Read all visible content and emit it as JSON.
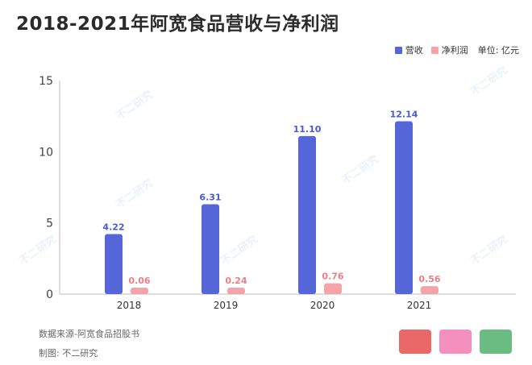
{
  "title": "2018-2021年阿宽食品营收与净利润",
  "legend": {
    "items": [
      {
        "name": "营收",
        "color": "#5566d9"
      },
      {
        "name": "净利润",
        "color": "#f4a3a8"
      }
    ],
    "unit": "单位: 亿元"
  },
  "chart_data": {
    "type": "bar",
    "categories": [
      "2018",
      "2019",
      "2020",
      "2021"
    ],
    "series": [
      {
        "name": "营收",
        "values": [
          4.22,
          6.31,
          11.1,
          12.14
        ],
        "labels": [
          "4.22",
          "6.31",
          "11.10",
          "12.14"
        ]
      },
      {
        "name": "净利润",
        "values": [
          0.06,
          0.24,
          0.76,
          0.56
        ],
        "labels": [
          "0.06",
          "0.24",
          "0.76",
          "0.56"
        ]
      }
    ],
    "yticks": [
      "0",
      "5",
      "10",
      "15"
    ],
    "ylim": [
      0,
      15
    ],
    "legend_position": "top-right",
    "grid": false
  },
  "footer": {
    "source": "数据来源-阿宽食品招股书",
    "author": "制图: 不二研究"
  },
  "watermark": {
    "text": "不二研究"
  }
}
